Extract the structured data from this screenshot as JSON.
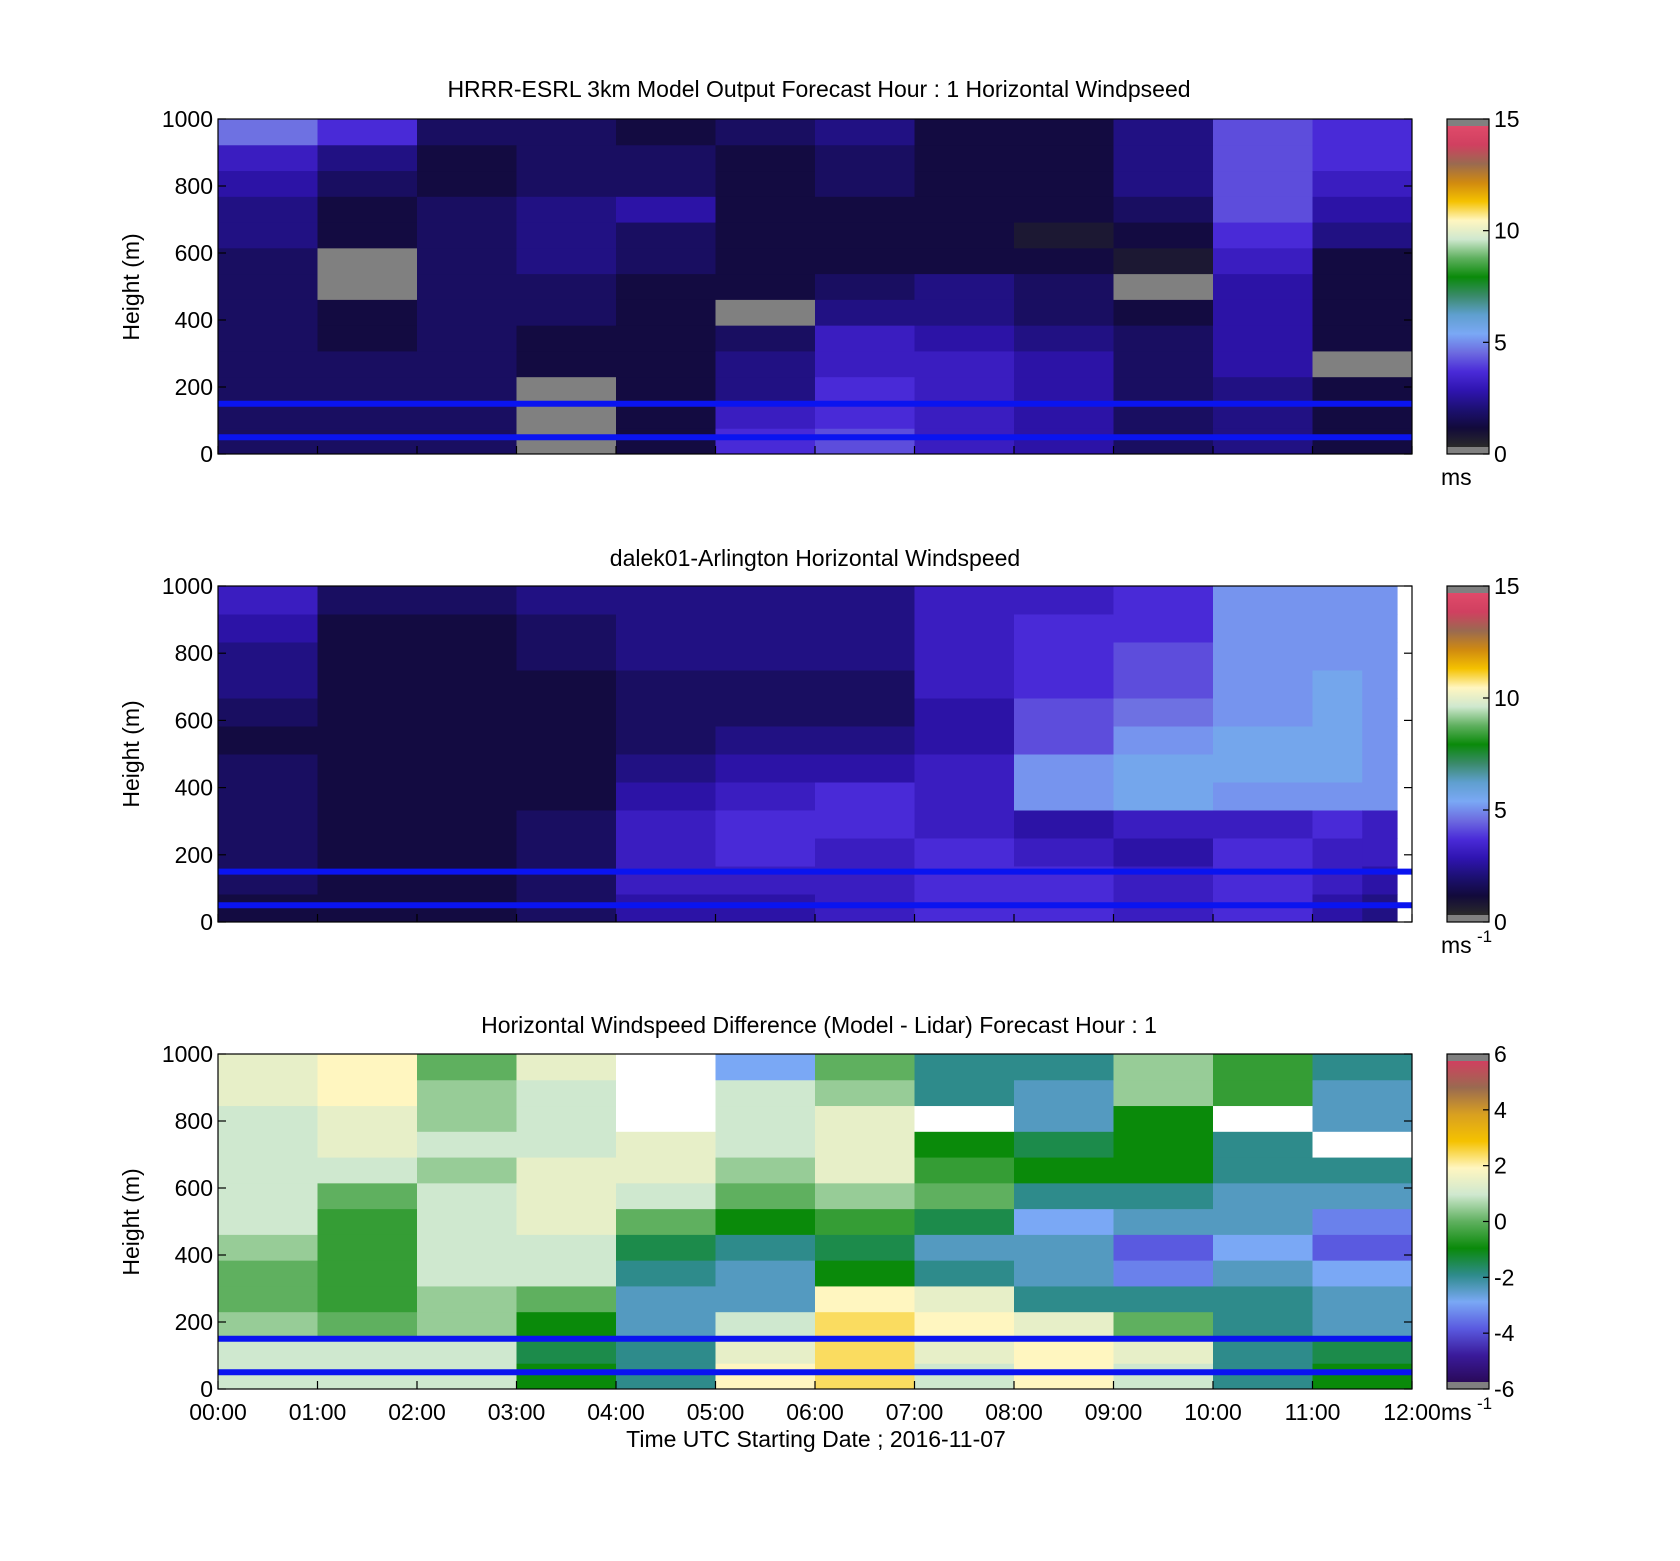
{
  "figure": {
    "date_label": "Time UTC  Starting Date ; 2016-11-07"
  },
  "colormap": {
    "speed": [
      "#2a2a2a",
      "#120a3a",
      "#1c1072",
      "#2f14b0",
      "#4a2bd8",
      "#6d6be0",
      "#7aa8f5",
      "#5f9fcf",
      "#3a8a6a",
      "#0a8a0a",
      "#5fb05f",
      "#cfe8cf",
      "#fff6c0",
      "#f5c200",
      "#d08a10",
      "#9a6a50",
      "#d04060",
      "#e04a6a",
      "#808080"
    ],
    "diff": [
      "#2a0a5a",
      "#3a1a9a",
      "#5a5ae0",
      "#7aa8f5",
      "#2e8b8b",
      "#0a8a0a",
      "#5fb05f",
      "#cfe8cf",
      "#fff6c0",
      "#f5c200",
      "#d9a020",
      "#9a6a50",
      "#d04060",
      "#808080"
    ],
    "missing": "#808080",
    "boundary_line": "#0a14f0"
  },
  "chart_data": [
    {
      "type": "heatmap",
      "title": "HRRR-ESRL 3km Model Output   Forecast Hour : 1 Horizontal Windpseed",
      "xlabel": "",
      "ylabel": "Height (m)",
      "yticks": [
        "0",
        "200",
        "400",
        "600",
        "800",
        "1000"
      ],
      "xlim": [
        0,
        12
      ],
      "ylim": [
        0,
        1000
      ],
      "colorbar": {
        "ticks": [
          "0",
          "5",
          "10",
          "15"
        ],
        "range": [
          0,
          15
        ],
        "unit_label": "ms",
        "unit_sup": ""
      },
      "hlines_m": [
        150,
        50
      ],
      "hour_columns": [
        {
          "hour": 0,
          "ws": [
            1.5,
            1.5,
            1.5,
            1.5,
            1.5,
            1.5,
            1.5,
            1.5,
            2,
            2,
            2.5,
            3,
            4.5
          ]
        },
        {
          "hour": 1,
          "ws": [
            1.5,
            1.5,
            1.5,
            1.5,
            1,
            1,
            0,
            0,
            1,
            1,
            1.5,
            2,
            3.5
          ]
        },
        {
          "hour": 2,
          "ws": [
            1.5,
            1.5,
            1.5,
            1.5,
            1.5,
            1.5,
            1.5,
            1.5,
            1.5,
            1.5,
            1,
            1,
            1.5
          ]
        },
        {
          "hour": 3,
          "ws": [
            0,
            0,
            0,
            1,
            1,
            1.5,
            1.5,
            2,
            2,
            2,
            1.5,
            1.5,
            1.5
          ]
        },
        {
          "hour": 4,
          "ws": [
            1,
            1,
            1,
            1,
            1,
            1,
            1,
            1.5,
            1.5,
            2.5,
            1.5,
            1.5,
            1
          ]
        },
        {
          "hour": 5,
          "ws": [
            3.5,
            3,
            2,
            2,
            1.5,
            0,
            1,
            1,
            1,
            1,
            1,
            1,
            1.5
          ]
        },
        {
          "hour": 6,
          "ws": [
            4,
            3.5,
            3.5,
            3,
            3,
            2,
            1.5,
            1,
            1,
            1,
            1.5,
            1.5,
            2
          ]
        },
        {
          "hour": 7,
          "ws": [
            3,
            3,
            3,
            3,
            2.5,
            2,
            2,
            1,
            1,
            1,
            1,
            1,
            1
          ]
        },
        {
          "hour": 8,
          "ws": [
            2.5,
            2.5,
            2.5,
            2.5,
            2,
            1.5,
            1.5,
            1,
            0.5,
            1,
            1,
            1,
            1
          ]
        },
        {
          "hour": 9,
          "ws": [
            1.5,
            1.5,
            1.5,
            1.5,
            1.5,
            1,
            0,
            0.5,
            1,
            1.5,
            2,
            2,
            2
          ]
        },
        {
          "hour": 10,
          "ws": [
            2,
            2,
            2,
            2.5,
            2.5,
            2.5,
            2.5,
            3,
            3.5,
            4,
            4,
            4,
            4
          ]
        },
        {
          "hour": 11,
          "ws": [
            1,
            1,
            1,
            0,
            1,
            1,
            1,
            1,
            2,
            2.5,
            3,
            3.5,
            3.5
          ]
        }
      ]
    },
    {
      "type": "heatmap",
      "title": "dalek01-Arlington  Horizontal Windspeed",
      "xlabel": "",
      "ylabel": "Height (m)",
      "yticks": [
        "0",
        "200",
        "400",
        "600",
        "800",
        "1000"
      ],
      "xlim": [
        0,
        12
      ],
      "ylim": [
        0,
        1000
      ],
      "colorbar": {
        "ticks": [
          "0",
          "5",
          "10",
          "15"
        ],
        "range": [
          0,
          15
        ],
        "unit_label": "ms",
        "unit_sup": "-1"
      },
      "hlines_m": [
        150,
        50
      ],
      "profile_columns": [
        {
          "hour": 0.0,
          "ws": [
            1,
            1.5,
            1.5,
            1.5,
            1.5,
            1.5,
            1,
            1.5,
            2,
            2,
            2.5,
            3
          ]
        },
        {
          "hour": 1.0,
          "ws": [
            1,
            1,
            1,
            1,
            1,
            1,
            1,
            1,
            1,
            1,
            1,
            1.5
          ]
        },
        {
          "hour": 2.0,
          "ws": [
            1,
            1,
            1,
            1,
            1,
            1,
            1,
            1,
            1,
            1,
            1,
            1.5
          ]
        },
        {
          "hour": 3.0,
          "ws": [
            1.5,
            1.5,
            1.5,
            1.5,
            1,
            1,
            1,
            1,
            1,
            1.5,
            1.5,
            2
          ]
        },
        {
          "hour": 4.0,
          "ws": [
            2.5,
            3,
            3,
            3,
            2.5,
            2,
            1.5,
            1.5,
            1.5,
            2,
            2,
            2
          ]
        },
        {
          "hour": 5.0,
          "ws": [
            2.5,
            3,
            3.5,
            3.5,
            3,
            2.5,
            2,
            1.5,
            1.5,
            2,
            2,
            2
          ]
        },
        {
          "hour": 6.0,
          "ws": [
            3,
            3,
            3,
            3.5,
            3.5,
            2.5,
            2,
            1.5,
            1.5,
            2,
            2,
            2
          ]
        },
        {
          "hour": 7.0,
          "ws": [
            3.5,
            3.5,
            3.5,
            3,
            3,
            3,
            2.5,
            2.5,
            3,
            3,
            3,
            3
          ]
        },
        {
          "hour": 8.0,
          "ws": [
            3.5,
            3.5,
            3,
            2.5,
            5,
            5,
            4,
            4,
            3.5,
            3.5,
            3.5,
            3
          ]
        },
        {
          "hour": 9.0,
          "ws": [
            3,
            3,
            2.5,
            3,
            5.5,
            5.5,
            5,
            4.5,
            4,
            4,
            3.5,
            3.5
          ]
        },
        {
          "hour": 10.0,
          "ws": [
            3.5,
            3.5,
            3.5,
            3,
            5,
            5.5,
            5.5,
            5,
            5,
            5,
            5,
            5
          ]
        },
        {
          "hour": 11.0,
          "ws": [
            2.5,
            3,
            3,
            3.5,
            5,
            5.5,
            5.5,
            5.5,
            5.5,
            5,
            5,
            5
          ]
        },
        {
          "hour": 11.5,
          "ws": [
            2,
            2.5,
            3,
            3,
            5,
            5,
            5,
            5,
            5,
            5,
            5,
            5
          ]
        }
      ]
    },
    {
      "type": "heatmap",
      "title": "Horizontal Windspeed Difference (Model - Lidar) Forecast Hour : 1",
      "xlabel": "Time UTC  Starting Date ; 2016-11-07",
      "ylabel": "Height (m)",
      "yticks": [
        "0",
        "200",
        "400",
        "600",
        "800",
        "1000"
      ],
      "xticks": [
        "00:00",
        "01:00",
        "02:00",
        "03:00",
        "04:00",
        "05:00",
        "06:00",
        "07:00",
        "08:00",
        "09:00",
        "10:00",
        "11:00",
        "12:00"
      ],
      "xlim": [
        0,
        12
      ],
      "ylim": [
        0,
        1000
      ],
      "colorbar": {
        "ticks": [
          "-6",
          "-4",
          "-2",
          "0",
          "2",
          "4",
          "6"
        ],
        "range": [
          -6,
          6
        ],
        "unit_label": "ms",
        "unit_sup": "-1"
      },
      "hlines_m": [
        150,
        50
      ],
      "hour_columns": [
        {
          "hour": 0,
          "diff": [
            1,
            1,
            0.5,
            0,
            0,
            0.5,
            1,
            1,
            1,
            1,
            1,
            1.5,
            1.5
          ]
        },
        {
          "hour": 1,
          "diff": [
            1,
            1,
            0,
            -0.5,
            -0.5,
            -0.5,
            -0.5,
            0,
            1,
            1.5,
            1.5,
            2,
            2
          ]
        },
        {
          "hour": 2,
          "diff": [
            1,
            1,
            0.5,
            0.5,
            1,
            1,
            1,
            1,
            0.5,
            1,
            0.5,
            0.5,
            0
          ]
        },
        {
          "hour": 3,
          "diff": [
            -1,
            -1.5,
            -1,
            0,
            1,
            1,
            1.5,
            1.5,
            1.5,
            1,
            1,
            1,
            1.5
          ]
        },
        {
          "hour": 4,
          "diff": [
            -2,
            -2,
            -2.5,
            -2.5,
            -2,
            -1.5,
            0,
            1,
            1.5,
            1.5,
            null,
            null,
            null
          ]
        },
        {
          "hour": 5,
          "diff": [
            2,
            1.5,
            1,
            -2.5,
            -2.5,
            -2,
            -1,
            0,
            0.5,
            1,
            1,
            1,
            -3
          ]
        },
        {
          "hour": 6,
          "diff": [
            2.5,
            2.5,
            2.5,
            2,
            -1,
            -1.5,
            -0.5,
            0.5,
            1.5,
            1.5,
            1.5,
            0.5,
            0
          ]
        },
        {
          "hour": 7,
          "diff": [
            1,
            1.5,
            2,
            1.5,
            -2,
            -2.5,
            -1.5,
            0,
            -0.5,
            -1,
            null,
            -2,
            -2
          ]
        },
        {
          "hour": 8,
          "diff": [
            2,
            2,
            1.5,
            -2,
            -2.5,
            -2.5,
            -3,
            -2,
            -1,
            -1.5,
            -2.5,
            -2.5,
            -2
          ]
        },
        {
          "hour": 9,
          "diff": [
            1,
            1.5,
            0,
            -2,
            -3.5,
            -4,
            -2.5,
            -2,
            -1,
            -1,
            -1,
            0.5,
            0.5
          ]
        },
        {
          "hour": 10,
          "diff": [
            -2,
            -2,
            -2,
            -2,
            -2.5,
            -3,
            -2.5,
            -2.5,
            -2,
            -2,
            null,
            -0.5,
            -0.5
          ]
        },
        {
          "hour": 11,
          "diff": [
            -1,
            -1.5,
            -2.5,
            -2.5,
            -3,
            -4,
            -3.5,
            -2.5,
            -2,
            null,
            -2.5,
            -2.5,
            -2
          ]
        }
      ]
    }
  ]
}
